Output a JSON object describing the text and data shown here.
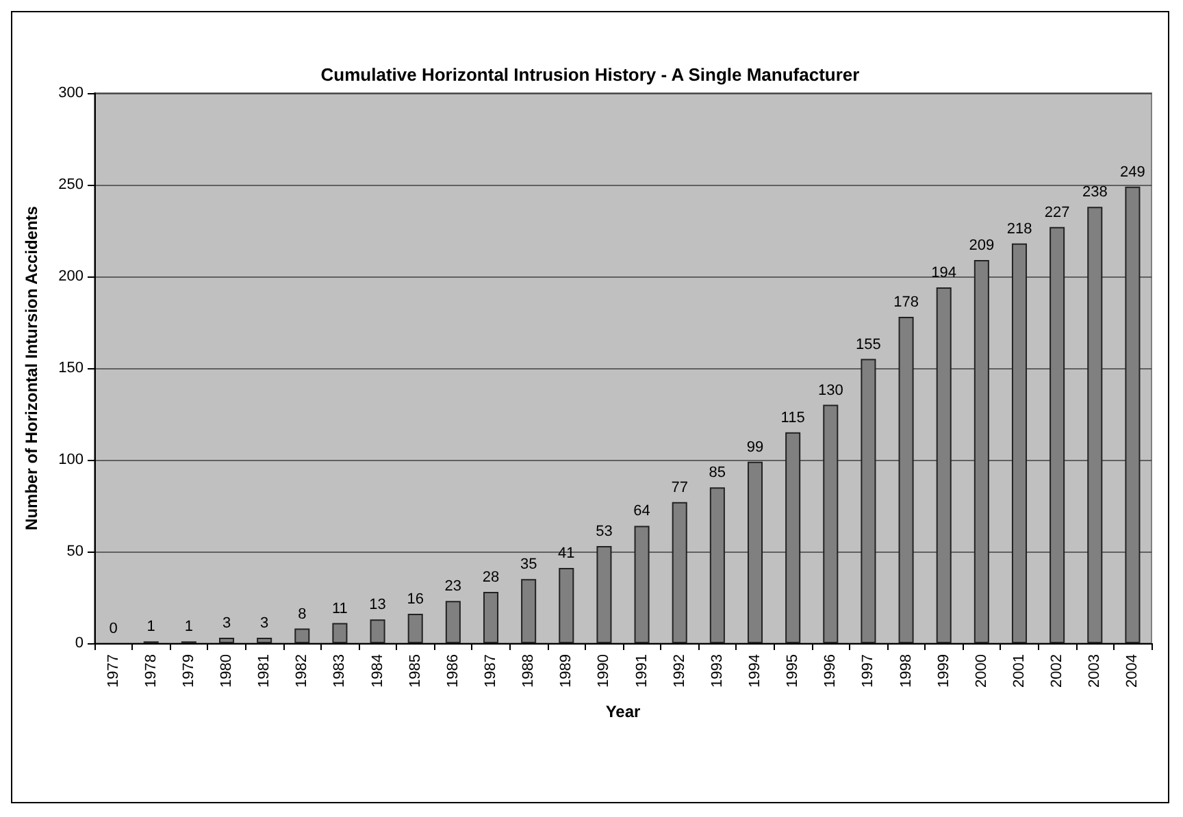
{
  "chart_data": {
    "type": "bar",
    "title": "Cumulative Horizontal Intrusion History - A Single Manufacturer",
    "xlabel": "Year",
    "ylabel": "Number of Horizontal Intursion Accidents",
    "categories": [
      "1977",
      "1978",
      "1979",
      "1980",
      "1981",
      "1982",
      "1983",
      "1984",
      "1985",
      "1986",
      "1987",
      "1988",
      "1989",
      "1990",
      "1991",
      "1992",
      "1993",
      "1994",
      "1995",
      "1996",
      "1997",
      "1998",
      "1999",
      "2000",
      "2001",
      "2002",
      "2003",
      "2004"
    ],
    "values": [
      0,
      1,
      1,
      3,
      3,
      8,
      11,
      13,
      16,
      23,
      28,
      35,
      41,
      53,
      64,
      77,
      85,
      99,
      115,
      130,
      155,
      178,
      194,
      209,
      218,
      227,
      238,
      249
    ],
    "color": "#808080",
    "ylim": [
      0,
      300
    ],
    "yticks": [
      0,
      50,
      100,
      150,
      200,
      250,
      300
    ],
    "grid": "y",
    "data_labels": true
  }
}
